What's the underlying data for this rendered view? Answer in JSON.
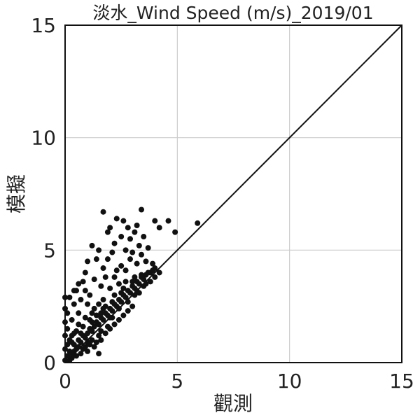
{
  "chart_data": {
    "type": "scatter",
    "title": "淡水_Wind Speed (m/s)_2019/01",
    "xlabel": "觀測",
    "ylabel": "模擬",
    "xlim": [
      0,
      15
    ],
    "ylim": [
      0,
      15
    ],
    "x_ticks": [
      "0",
      "5",
      "10",
      "15"
    ],
    "y_ticks": [
      "0",
      "5",
      "10",
      "15"
    ],
    "grid": true,
    "reference_line": {
      "from": [
        0,
        0
      ],
      "to": [
        15,
        15
      ]
    },
    "point_color": "#111111",
    "series": [
      {
        "points": [
          [
            0.1,
            0.3
          ],
          [
            0.2,
            0.5
          ],
          [
            0.3,
            0.4
          ],
          [
            0.4,
            0.8
          ],
          [
            0.5,
            0.6
          ],
          [
            0.6,
            1.0
          ],
          [
            0.7,
            0.9
          ],
          [
            0.8,
            1.2
          ],
          [
            0.9,
            1.1
          ],
          [
            1.0,
            1.3
          ],
          [
            1.1,
            1.5
          ],
          [
            1.2,
            1.4
          ],
          [
            1.3,
            1.6
          ],
          [
            1.4,
            1.8
          ],
          [
            1.5,
            1.7
          ],
          [
            1.6,
            2.0
          ],
          [
            1.7,
            1.9
          ],
          [
            1.8,
            2.2
          ],
          [
            1.9,
            2.1
          ],
          [
            2.0,
            2.4
          ],
          [
            2.1,
            2.3
          ],
          [
            2.2,
            2.6
          ],
          [
            2.3,
            2.5
          ],
          [
            2.4,
            2.8
          ],
          [
            2.5,
            2.7
          ],
          [
            2.6,
            3.0
          ],
          [
            2.7,
            2.9
          ],
          [
            2.8,
            3.2
          ],
          [
            2.9,
            3.1
          ],
          [
            3.0,
            3.4
          ],
          [
            3.1,
            3.3
          ],
          [
            3.2,
            3.6
          ],
          [
            3.3,
            3.5
          ],
          [
            3.4,
            3.8
          ],
          [
            3.5,
            3.7
          ],
          [
            3.6,
            3.9
          ],
          [
            3.8,
            4.0
          ],
          [
            4.0,
            4.2
          ],
          [
            3.9,
            4.1
          ],
          [
            3.7,
            4.0
          ],
          [
            0.0,
            0.1
          ],
          [
            0.0,
            0.6
          ],
          [
            0.0,
            1.2
          ],
          [
            0.0,
            1.8
          ],
          [
            0.0,
            2.4
          ],
          [
            0.0,
            2.9
          ],
          [
            0.1,
            1.5
          ],
          [
            0.1,
            2.2
          ],
          [
            0.2,
            0.1
          ],
          [
            0.2,
            1.0
          ],
          [
            0.3,
            1.9
          ],
          [
            0.3,
            0.2
          ],
          [
            0.4,
            2.6
          ],
          [
            0.4,
            1.3
          ],
          [
            0.5,
            3.2
          ],
          [
            0.5,
            0.3
          ],
          [
            0.6,
            2.2
          ],
          [
            0.6,
            1.7
          ],
          [
            0.7,
            0.4
          ],
          [
            0.7,
            2.8
          ],
          [
            0.8,
            3.6
          ],
          [
            0.8,
            0.6
          ],
          [
            0.9,
            2.0
          ],
          [
            0.9,
            4.0
          ],
          [
            1.0,
            0.5
          ],
          [
            1.0,
            2.6
          ],
          [
            1.0,
            4.5
          ],
          [
            1.1,
            3.0
          ],
          [
            1.1,
            0.8
          ],
          [
            1.2,
            5.2
          ],
          [
            1.2,
            2.2
          ],
          [
            1.3,
            0.7
          ],
          [
            1.3,
            3.7
          ],
          [
            1.4,
            4.6
          ],
          [
            1.4,
            0.9
          ],
          [
            1.5,
            5.0
          ],
          [
            1.5,
            2.6
          ],
          [
            1.5,
            0.4
          ],
          [
            1.6,
            3.4
          ],
          [
            1.6,
            1.0
          ],
          [
            1.7,
            4.2
          ],
          [
            1.7,
            6.7
          ],
          [
            1.7,
            2.8
          ],
          [
            1.8,
            1.3
          ],
          [
            1.8,
            3.8
          ],
          [
            1.9,
            5.8
          ],
          [
            1.9,
            4.6
          ],
          [
            2.0,
            1.5
          ],
          [
            2.0,
            3.3
          ],
          [
            2.0,
            6.0
          ],
          [
            2.1,
            4.9
          ],
          [
            2.1,
            2.0
          ],
          [
            2.2,
            5.3
          ],
          [
            2.2,
            1.7
          ],
          [
            2.3,
            4.1
          ],
          [
            2.3,
            6.4
          ],
          [
            2.4,
            3.5
          ],
          [
            2.4,
            1.9
          ],
          [
            2.5,
            5.6
          ],
          [
            2.5,
            4.3
          ],
          [
            2.6,
            6.3
          ],
          [
            2.6,
            2.1
          ],
          [
            2.7,
            5.0
          ],
          [
            2.7,
            3.6
          ],
          [
            2.8,
            6.0
          ],
          [
            2.8,
            2.3
          ],
          [
            2.9,
            4.6
          ],
          [
            2.9,
            5.5
          ],
          [
            3.0,
            2.5
          ],
          [
            3.0,
            4.9
          ],
          [
            3.1,
            5.8
          ],
          [
            3.1,
            3.0
          ],
          [
            3.2,
            6.1
          ],
          [
            3.2,
            4.4
          ],
          [
            3.3,
            5.2
          ],
          [
            3.3,
            3.1
          ],
          [
            3.4,
            6.8
          ],
          [
            3.4,
            4.8
          ],
          [
            3.5,
            3.4
          ],
          [
            3.5,
            5.6
          ],
          [
            3.6,
            4.5
          ],
          [
            3.7,
            5.1
          ],
          [
            3.8,
            3.6
          ],
          [
            3.9,
            4.4
          ],
          [
            4.0,
            6.3
          ],
          [
            4.0,
            3.8
          ],
          [
            4.2,
            4.0
          ],
          [
            4.2,
            6.0
          ],
          [
            4.6,
            6.3
          ],
          [
            4.9,
            5.8
          ],
          [
            5.9,
            6.2
          ],
          [
            0.3,
            0.9
          ],
          [
            0.5,
            1.4
          ],
          [
            0.6,
            0.7
          ],
          [
            0.8,
            1.6
          ],
          [
            0.9,
            0.7
          ],
          [
            1.1,
            1.9
          ],
          [
            1.2,
            1.0
          ],
          [
            1.4,
            2.1
          ],
          [
            1.6,
            1.4
          ],
          [
            1.8,
            2.5
          ],
          [
            2.0,
            2.0
          ],
          [
            2.2,
            3.0
          ],
          [
            2.4,
            2.4
          ],
          [
            2.6,
            3.3
          ],
          [
            2.8,
            2.7
          ],
          [
            3.0,
            3.6
          ],
          [
            3.2,
            3.2
          ],
          [
            3.4,
            3.9
          ],
          [
            3.6,
            3.5
          ],
          [
            0.2,
            2.9
          ],
          [
            0.4,
            3.2
          ],
          [
            0.6,
            3.5
          ],
          [
            0.9,
            3.2
          ],
          [
            1.3,
            2.4
          ],
          [
            1.6,
            2.2
          ],
          [
            2.2,
            3.8
          ],
          [
            2.5,
            3.1
          ],
          [
            2.7,
            4.1
          ],
          [
            3.1,
            3.8
          ],
          [
            0.1,
            0.8
          ],
          [
            0.3,
            1.2
          ],
          [
            0.4,
            0.5
          ],
          [
            0.7,
            1.3
          ],
          [
            1.0,
            0.9
          ],
          [
            1.2,
            1.8
          ],
          [
            1.5,
            1.2
          ],
          [
            1.7,
            2.4
          ],
          [
            1.9,
            1.6
          ],
          [
            2.1,
            2.7
          ]
        ]
      }
    ]
  }
}
